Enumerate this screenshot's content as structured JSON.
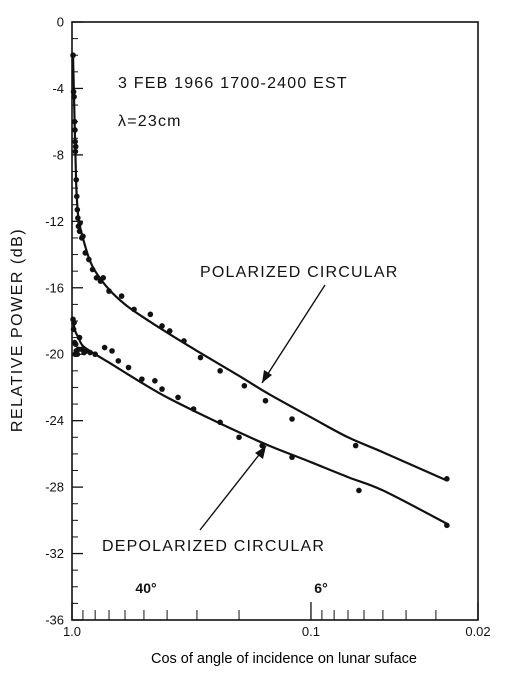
{
  "chart_data": {
    "type": "scatter",
    "title": "3 FEB 1966  1700-2400 EST",
    "subtitle": "λ=23cm",
    "xlabel": "Cos of angle of incidence on lunar suface",
    "ylabel": "RELATIVE POWER (dB)",
    "xscale": "log",
    "xdir": "reversed",
    "xlim": [
      1.0,
      0.02
    ],
    "ylim": [
      -36,
      0
    ],
    "x_ticks": [
      {
        "value": 1.0,
        "label": "1.0"
      },
      {
        "value": 0.1,
        "label": "0.1"
      },
      {
        "value": 0.02,
        "label": "0.02"
      }
    ],
    "y_ticks": [
      {
        "value": 0,
        "label": "0"
      },
      {
        "value": -4,
        "label": "-4"
      },
      {
        "value": -8,
        "label": "-8"
      },
      {
        "value": -12,
        "label": "-12"
      },
      {
        "value": -16,
        "label": "-16"
      },
      {
        "value": -20,
        "label": "-20"
      },
      {
        "value": -24,
        "label": "-24"
      },
      {
        "value": -28,
        "label": "-28"
      },
      {
        "value": -32,
        "label": "-32"
      },
      {
        "value": -36,
        "label": "-36"
      }
    ],
    "angle_markers": [
      {
        "x": 0.766,
        "label": "40°"
      },
      {
        "x": 0.1,
        "label": "6°"
      }
    ],
    "series": [
      {
        "name": "POLARIZED CIRCULAR",
        "points": [
          [
            0.99,
            -2.0
          ],
          [
            0.985,
            -4.2
          ],
          [
            0.98,
            -4.5
          ],
          [
            0.975,
            -6.0
          ],
          [
            0.972,
            -6.5
          ],
          [
            0.97,
            -7.2
          ],
          [
            0.968,
            -7.8
          ],
          [
            0.965,
            -7.5
          ],
          [
            0.96,
            -9.5
          ],
          [
            0.955,
            -10.5
          ],
          [
            0.95,
            -11.3
          ],
          [
            0.945,
            -11.8
          ],
          [
            0.94,
            -12.3
          ],
          [
            0.93,
            -12.6
          ],
          [
            0.925,
            -12.1
          ],
          [
            0.91,
            -13.0
          ],
          [
            0.9,
            -12.9
          ],
          [
            0.88,
            -13.9
          ],
          [
            0.85,
            -14.3
          ],
          [
            0.82,
            -14.9
          ],
          [
            0.79,
            -15.4
          ],
          [
            0.76,
            -15.6
          ],
          [
            0.74,
            -15.4
          ],
          [
            0.7,
            -16.2
          ],
          [
            0.62,
            -16.5
          ],
          [
            0.55,
            -17.3
          ],
          [
            0.47,
            -17.6
          ],
          [
            0.42,
            -18.3
          ],
          [
            0.39,
            -18.6
          ],
          [
            0.34,
            -19.2
          ],
          [
            0.29,
            -20.2
          ],
          [
            0.24,
            -21.0
          ],
          [
            0.19,
            -21.9
          ],
          [
            0.155,
            -22.8
          ],
          [
            0.12,
            -23.9
          ],
          [
            0.065,
            -25.5
          ],
          [
            0.027,
            -27.5
          ]
        ],
        "curve": [
          [
            0.99,
            -2.0
          ],
          [
            0.975,
            -6.0
          ],
          [
            0.96,
            -9.8
          ],
          [
            0.94,
            -11.8
          ],
          [
            0.9,
            -13.0
          ],
          [
            0.85,
            -14.2
          ],
          [
            0.8,
            -15.0
          ],
          [
            0.7,
            -16.1
          ],
          [
            0.6,
            -17.0
          ],
          [
            0.5,
            -17.8
          ],
          [
            0.4,
            -18.7
          ],
          [
            0.3,
            -19.8
          ],
          [
            0.2,
            -21.3
          ],
          [
            0.15,
            -22.4
          ],
          [
            0.1,
            -23.8
          ],
          [
            0.07,
            -25.0
          ],
          [
            0.05,
            -25.9
          ],
          [
            0.027,
            -27.6
          ]
        ]
      },
      {
        "name": "DEPOLARIZED CIRCULAR",
        "points": [
          [
            0.99,
            -17.9
          ],
          [
            0.985,
            -18.5
          ],
          [
            0.98,
            -18.1
          ],
          [
            0.975,
            -19.3
          ],
          [
            0.97,
            -20.0
          ],
          [
            0.965,
            -19.4
          ],
          [
            0.96,
            -19.8
          ],
          [
            0.95,
            -20.0
          ],
          [
            0.94,
            -19.7
          ],
          [
            0.93,
            -19.0
          ],
          [
            0.91,
            -19.7
          ],
          [
            0.89,
            -19.9
          ],
          [
            0.87,
            -19.8
          ],
          [
            0.84,
            -19.9
          ],
          [
            0.8,
            -20.0
          ],
          [
            0.73,
            -19.6
          ],
          [
            0.68,
            -19.8
          ],
          [
            0.64,
            -20.4
          ],
          [
            0.58,
            -20.8
          ],
          [
            0.51,
            -21.5
          ],
          [
            0.45,
            -21.6
          ],
          [
            0.42,
            -22.1
          ],
          [
            0.36,
            -22.6
          ],
          [
            0.31,
            -23.3
          ],
          [
            0.24,
            -24.1
          ],
          [
            0.2,
            -25.0
          ],
          [
            0.16,
            -25.5
          ],
          [
            0.12,
            -26.2
          ],
          [
            0.063,
            -28.2
          ],
          [
            0.027,
            -30.3
          ]
        ],
        "curve": [
          [
            0.99,
            -18.0
          ],
          [
            0.97,
            -18.6
          ],
          [
            0.94,
            -19.0
          ],
          [
            0.9,
            -19.5
          ],
          [
            0.8,
            -20.0
          ],
          [
            0.7,
            -20.5
          ],
          [
            0.6,
            -21.1
          ],
          [
            0.5,
            -21.8
          ],
          [
            0.4,
            -22.6
          ],
          [
            0.3,
            -23.5
          ],
          [
            0.2,
            -24.7
          ],
          [
            0.15,
            -25.5
          ],
          [
            0.1,
            -26.5
          ],
          [
            0.07,
            -27.4
          ],
          [
            0.05,
            -28.2
          ],
          [
            0.027,
            -30.2
          ]
        ]
      }
    ]
  }
}
